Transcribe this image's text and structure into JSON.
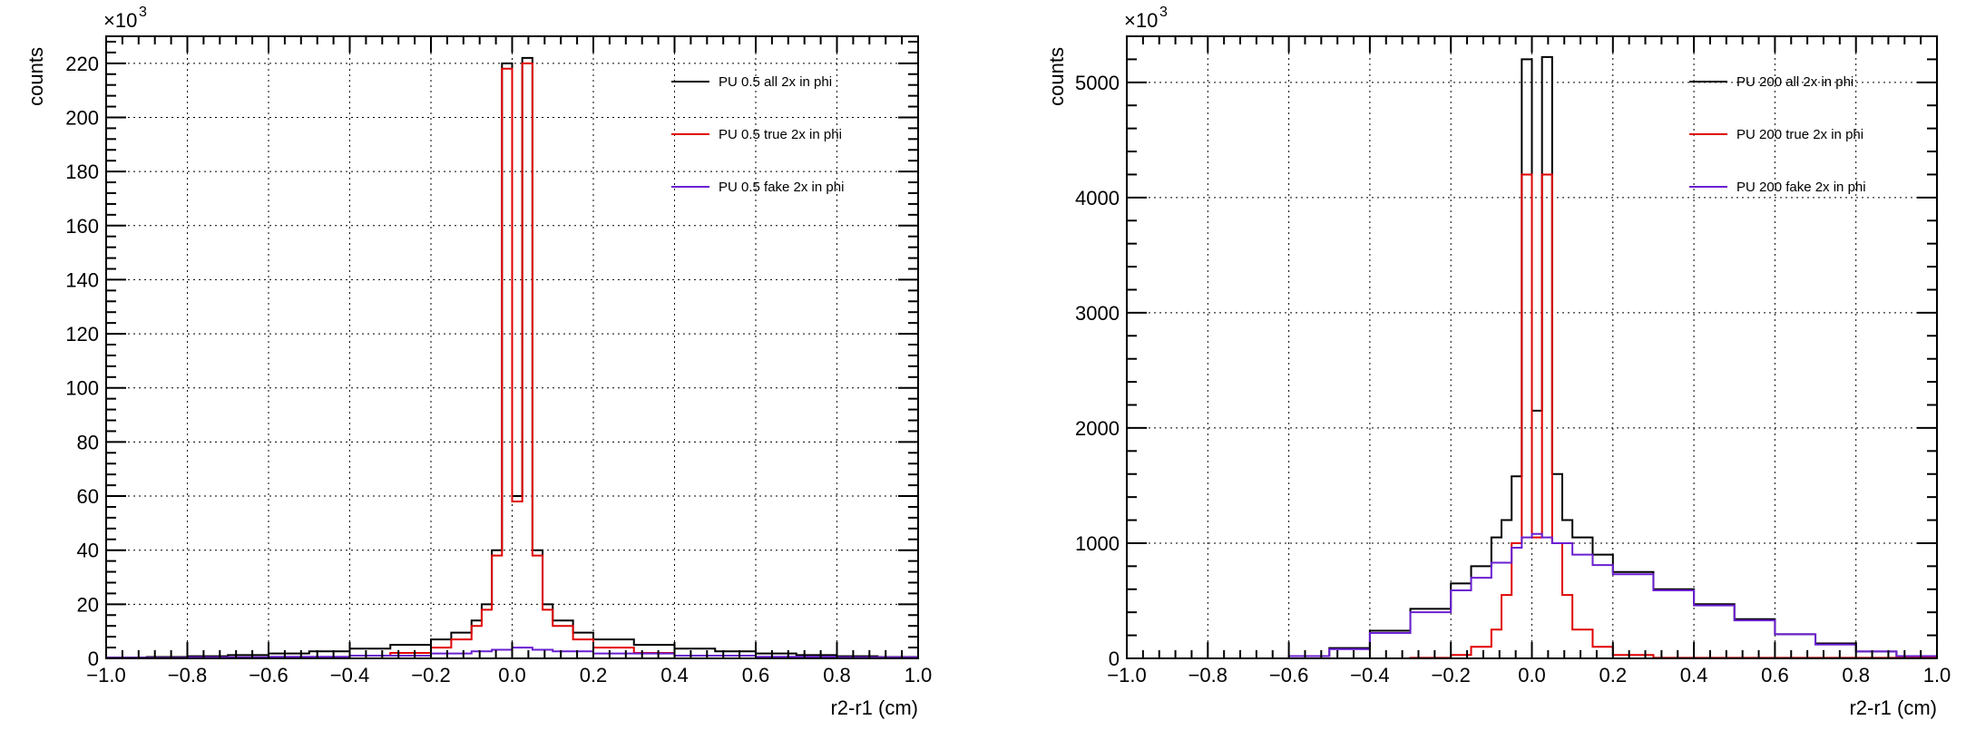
{
  "chart_data": [
    {
      "type": "histogram",
      "xlabel": "r2-r1 (cm)",
      "ylabel": "counts",
      "y_multiplier_label": "×10",
      "y_multiplier_exp": "3",
      "xlim": [
        -1.0,
        1.0
      ],
      "ylim": [
        0,
        230
      ],
      "grid": true,
      "legend_placement": "top-right",
      "x_ticks": [
        "−1.0",
        "−0.8",
        "−0.6",
        "−0.4",
        "−0.2",
        "0.0",
        "0.2",
        "0.4",
        "0.6",
        "0.8",
        "1.0"
      ],
      "x_tick_values": [
        -1.0,
        -0.8,
        -0.6,
        -0.4,
        -0.2,
        0.0,
        0.2,
        0.4,
        0.6,
        0.8,
        1.0
      ],
      "y_ticks": [
        "0",
        "20",
        "40",
        "60",
        "80",
        "100",
        "120",
        "140",
        "160",
        "180",
        "200",
        "220"
      ],
      "y_tick_values": [
        0,
        20,
        40,
        60,
        80,
        100,
        120,
        140,
        160,
        180,
        200,
        220
      ],
      "series": [
        {
          "name": "PU 0.5 all 2x in phi",
          "color": "#000000",
          "points": [
            [
              -1.0,
              0.3
            ],
            [
              -0.9,
              0.5
            ],
            [
              -0.8,
              0.8
            ],
            [
              -0.7,
              1.2
            ],
            [
              -0.6,
              1.8
            ],
            [
              -0.5,
              2.6
            ],
            [
              -0.4,
              3.6
            ],
            [
              -0.3,
              5.0
            ],
            [
              -0.2,
              7.0
            ],
            [
              -0.15,
              9.5
            ],
            [
              -0.1,
              14.0
            ],
            [
              -0.075,
              20.0
            ],
            [
              -0.05,
              40.0
            ],
            [
              -0.025,
              220.0
            ],
            [
              0.0,
              60.0
            ],
            [
              0.025,
              222.0
            ],
            [
              0.05,
              40.0
            ],
            [
              0.075,
              20.0
            ],
            [
              0.1,
              14.0
            ],
            [
              0.15,
              9.5
            ],
            [
              0.2,
              7.0
            ],
            [
              0.3,
              5.0
            ],
            [
              0.4,
              3.6
            ],
            [
              0.5,
              2.6
            ],
            [
              0.6,
              1.8
            ],
            [
              0.7,
              1.2
            ],
            [
              0.8,
              0.8
            ],
            [
              0.9,
              0.5
            ],
            [
              1.0,
              0.3
            ]
          ]
        },
        {
          "name": "PU 0.5 true 2x in phi",
          "color": "#e00000",
          "points": [
            [
              -1.0,
              0.1
            ],
            [
              -0.8,
              0.2
            ],
            [
              -0.6,
              0.4
            ],
            [
              -0.4,
              1.0
            ],
            [
              -0.3,
              2.0
            ],
            [
              -0.2,
              4.0
            ],
            [
              -0.15,
              7.0
            ],
            [
              -0.1,
              12.0
            ],
            [
              -0.075,
              18.0
            ],
            [
              -0.05,
              38.0
            ],
            [
              -0.025,
              218.0
            ],
            [
              0.0,
              58.0
            ],
            [
              0.025,
              220.0
            ],
            [
              0.05,
              38.0
            ],
            [
              0.075,
              18.0
            ],
            [
              0.1,
              12.0
            ],
            [
              0.15,
              7.0
            ],
            [
              0.2,
              4.0
            ],
            [
              0.3,
              2.0
            ],
            [
              0.4,
              1.0
            ],
            [
              0.6,
              0.4
            ],
            [
              0.8,
              0.2
            ],
            [
              1.0,
              0.1
            ]
          ]
        },
        {
          "name": "PU 0.5 fake 2x in phi",
          "color": "#6a1fd1",
          "points": [
            [
              -1.0,
              0.2
            ],
            [
              -0.8,
              0.4
            ],
            [
              -0.6,
              0.6
            ],
            [
              -0.4,
              1.0
            ],
            [
              -0.2,
              1.8
            ],
            [
              -0.1,
              2.6
            ],
            [
              -0.05,
              3.2
            ],
            [
              0.0,
              4.0
            ],
            [
              0.05,
              3.2
            ],
            [
              0.1,
              2.6
            ],
            [
              0.2,
              1.8
            ],
            [
              0.4,
              1.0
            ],
            [
              0.6,
              0.6
            ],
            [
              0.8,
              0.4
            ],
            [
              1.0,
              0.2
            ]
          ]
        }
      ]
    },
    {
      "type": "histogram",
      "xlabel": "r2-r1 (cm)",
      "ylabel": "counts",
      "y_multiplier_label": "×10",
      "y_multiplier_exp": "3",
      "xlim": [
        -1.0,
        1.0
      ],
      "ylim": [
        0,
        5400
      ],
      "grid": true,
      "legend_placement": "top-right",
      "x_ticks": [
        "−1.0",
        "−0.8",
        "−0.6",
        "−0.4",
        "−0.2",
        "0.0",
        "0.2",
        "0.4",
        "0.6",
        "0.8",
        "1.0"
      ],
      "x_tick_values": [
        -1.0,
        -0.8,
        -0.6,
        -0.4,
        -0.2,
        0.0,
        0.2,
        0.4,
        0.6,
        0.8,
        1.0
      ],
      "y_ticks": [
        "0",
        "1000",
        "2000",
        "3000",
        "4000",
        "5000"
      ],
      "y_tick_values": [
        0,
        1000,
        2000,
        3000,
        4000,
        5000
      ],
      "series": [
        {
          "name": "PU 200 all 2x in phi",
          "color": "#000000",
          "points": [
            [
              -1.0,
              0
            ],
            [
              -0.6,
              20
            ],
            [
              -0.5,
              90
            ],
            [
              -0.4,
              240
            ],
            [
              -0.3,
              430
            ],
            [
              -0.2,
              650
            ],
            [
              -0.15,
              800
            ],
            [
              -0.1,
              1050
            ],
            [
              -0.075,
              1200
            ],
            [
              -0.05,
              1580
            ],
            [
              -0.025,
              5200
            ],
            [
              0.0,
              2150
            ],
            [
              0.025,
              5220
            ],
            [
              0.05,
              1600
            ],
            [
              0.075,
              1200
            ],
            [
              0.1,
              1050
            ],
            [
              0.15,
              900
            ],
            [
              0.2,
              750
            ],
            [
              0.3,
              600
            ],
            [
              0.4,
              470
            ],
            [
              0.5,
              340
            ],
            [
              0.6,
              210
            ],
            [
              0.7,
              130
            ],
            [
              0.8,
              60
            ],
            [
              0.9,
              20
            ],
            [
              1.0,
              0
            ]
          ]
        },
        {
          "name": "PU 200 true 2x in phi",
          "color": "#e00000",
          "points": [
            [
              -1.0,
              0
            ],
            [
              -0.3,
              5
            ],
            [
              -0.2,
              30
            ],
            [
              -0.15,
              100
            ],
            [
              -0.1,
              250
            ],
            [
              -0.075,
              550
            ],
            [
              -0.05,
              1000
            ],
            [
              -0.025,
              4200
            ],
            [
              0.0,
              1050
            ],
            [
              0.025,
              4200
            ],
            [
              0.05,
              1000
            ],
            [
              0.075,
              550
            ],
            [
              0.1,
              250
            ],
            [
              0.15,
              100
            ],
            [
              0.2,
              30
            ],
            [
              0.3,
              5
            ],
            [
              1.0,
              0
            ]
          ]
        },
        {
          "name": "PU 200 fake 2x in phi",
          "color": "#6a1fd1",
          "points": [
            [
              -1.0,
              0
            ],
            [
              -0.6,
              20
            ],
            [
              -0.5,
              80
            ],
            [
              -0.4,
              220
            ],
            [
              -0.3,
              400
            ],
            [
              -0.2,
              590
            ],
            [
              -0.15,
              700
            ],
            [
              -0.1,
              830
            ],
            [
              -0.05,
              960
            ],
            [
              -0.025,
              1050
            ],
            [
              0.0,
              1080
            ],
            [
              0.025,
              1050
            ],
            [
              0.05,
              1000
            ],
            [
              0.1,
              900
            ],
            [
              0.15,
              810
            ],
            [
              0.2,
              730
            ],
            [
              0.3,
              590
            ],
            [
              0.4,
              460
            ],
            [
              0.5,
              330
            ],
            [
              0.6,
              210
            ],
            [
              0.7,
              120
            ],
            [
              0.8,
              60
            ],
            [
              0.9,
              20
            ],
            [
              1.0,
              0
            ]
          ]
        }
      ]
    }
  ]
}
